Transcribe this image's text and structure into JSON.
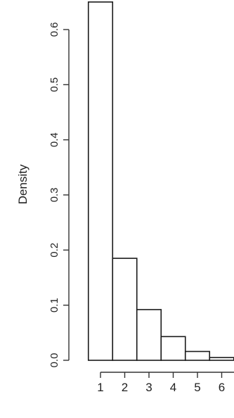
{
  "chart_data": {
    "type": "bar",
    "title": "",
    "xlabel": "",
    "ylabel": "Density",
    "ylim": [
      0,
      0.65
    ],
    "yticks": [
      0.0,
      0.1,
      0.2,
      0.3,
      0.4,
      0.5,
      0.6
    ],
    "ytick_labels": [
      "0.0",
      "0.1",
      "0.2",
      "0.3",
      "0.4",
      "0.5",
      "0.6"
    ],
    "xticks": [
      1,
      2,
      3,
      4,
      5,
      6
    ],
    "xtick_labels": [
      "1",
      "2",
      "3",
      "4",
      "5",
      "6"
    ],
    "bins": [
      {
        "from": 0.5,
        "to": 1.5,
        "value": 0.65
      },
      {
        "from": 1.5,
        "to": 2.5,
        "value": 0.185
      },
      {
        "from": 2.5,
        "to": 3.5,
        "value": 0.092
      },
      {
        "from": 3.5,
        "to": 4.5,
        "value": 0.043
      },
      {
        "from": 4.5,
        "to": 5.5,
        "value": 0.016
      },
      {
        "from": 5.5,
        "to": 6.5,
        "value": 0.005
      }
    ],
    "grid": false,
    "legend": "none",
    "colors": {
      "bar_fill": "#ffffff",
      "bar_stroke": "#1a1a1a",
      "axis": "#333333",
      "text": "#222222"
    }
  }
}
